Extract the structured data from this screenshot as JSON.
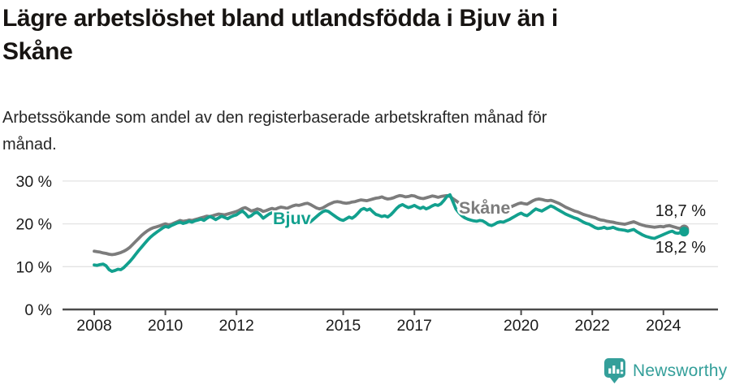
{
  "title": {
    "lines": [
      "Lägre arbetslöshet bland utlandsfödda i Bjuv än i",
      "Skåne"
    ]
  },
  "subtitle": {
    "lines": [
      "Arbetssökande som andel av den registerbaserade arbetskraften månad för",
      "månad."
    ]
  },
  "footer": {
    "brand": "Newsworthy",
    "logo_icon": "bar-chart-speech-bubble-icon"
  },
  "colors": {
    "bjuv_line": "#12a08e",
    "skane_line": "#7c7c7c",
    "grid": "#e3e3e3",
    "axis": "#4b4b4b",
    "text": "#1a1a1a",
    "brand_teal": "#349f9a",
    "title_text": "#171412"
  },
  "chart_data": {
    "type": "line",
    "frequency": "monthly",
    "x_start": "2008-01",
    "x_end": "2024-08",
    "x_tick_years": [
      2008,
      2010,
      2012,
      2015,
      2017,
      2020,
      2022,
      2024
    ],
    "y_ticks": [
      {
        "v": 0,
        "label": "0 %"
      },
      {
        "v": 10,
        "label": "10 %"
      },
      {
        "v": 20,
        "label": "20 %"
      },
      {
        "v": 30,
        "label": "30 %"
      }
    ],
    "ylim": [
      0,
      32
    ],
    "grid": "horizontal",
    "legend": "inline-labels",
    "series": [
      {
        "name": "Skåne",
        "color": "#7c7c7c",
        "end_label": "18,7 %",
        "values": [
          13.6,
          13.5,
          13.4,
          13.2,
          13.1,
          12.9,
          12.8,
          12.9,
          13.1,
          13.3,
          13.6,
          14.0,
          14.5,
          15.2,
          15.9,
          16.6,
          17.3,
          17.9,
          18.4,
          18.8,
          19.1,
          19.3,
          19.5,
          19.8,
          20.0,
          19.8,
          19.9,
          20.2,
          20.5,
          20.8,
          20.6,
          20.7,
          20.9,
          20.8,
          21.0,
          21.2,
          21.4,
          21.6,
          21.8,
          21.7,
          21.9,
          22.1,
          22.3,
          22.2,
          22.1,
          22.3,
          22.5,
          22.7,
          22.9,
          23.2,
          23.6,
          23.8,
          23.4,
          23.0,
          23.2,
          23.5,
          23.3,
          22.9,
          23.1,
          23.4,
          23.6,
          23.4,
          23.7,
          23.9,
          23.8,
          23.6,
          23.9,
          24.2,
          24.4,
          24.3,
          24.5,
          24.7,
          24.8,
          24.5,
          24.1,
          23.7,
          23.5,
          23.7,
          24.1,
          24.5,
          24.8,
          25.1,
          25.2,
          25.1,
          24.9,
          24.8,
          24.9,
          25.1,
          25.2,
          25.4,
          25.6,
          25.5,
          25.4,
          25.6,
          25.8,
          26.0,
          26.1,
          26.3,
          26.0,
          25.8,
          25.9,
          26.1,
          26.4,
          26.6,
          26.5,
          26.3,
          26.4,
          26.6,
          26.5,
          26.2,
          26.0,
          25.9,
          26.1,
          26.3,
          26.5,
          26.4,
          26.2,
          26.4,
          26.5,
          26.6,
          26.4,
          25.9,
          25.4,
          24.9,
          24.5,
          24.2,
          24.0,
          23.8,
          23.6,
          23.4,
          23.3,
          23.2,
          23.1,
          22.9,
          22.7,
          22.8,
          23.0,
          23.2,
          23.4,
          23.6,
          23.8,
          24.1,
          24.4,
          24.7,
          24.9,
          24.7,
          24.6,
          25.0,
          25.4,
          25.7,
          25.8,
          25.7,
          25.5,
          25.4,
          25.5,
          25.3,
          25.0,
          24.7,
          24.3,
          23.9,
          23.6,
          23.3,
          23.0,
          22.8,
          22.5,
          22.2,
          22.0,
          21.8,
          21.6,
          21.4,
          21.1,
          20.9,
          20.8,
          20.6,
          20.5,
          20.4,
          20.2,
          20.1,
          20.0,
          19.9,
          20.1,
          20.3,
          20.5,
          20.2,
          19.9,
          19.7,
          19.5,
          19.4,
          19.3,
          19.2,
          19.3,
          19.4,
          19.3,
          19.5,
          19.6,
          19.4,
          19.2,
          19.0,
          18.9,
          18.7
        ]
      },
      {
        "name": "Bjuv",
        "color": "#12a08e",
        "end_label": "18,2 %",
        "values": [
          10.4,
          10.3,
          10.5,
          10.6,
          10.2,
          9.3,
          8.9,
          9.1,
          9.4,
          9.3,
          9.8,
          10.5,
          11.2,
          12.0,
          12.9,
          13.8,
          14.6,
          15.4,
          16.2,
          16.9,
          17.5,
          18.0,
          18.5,
          19.0,
          19.4,
          19.2,
          19.6,
          19.9,
          20.2,
          20.4,
          20.1,
          20.3,
          20.6,
          20.4,
          20.7,
          20.9,
          21.1,
          20.8,
          21.3,
          21.7,
          21.4,
          21.0,
          21.4,
          21.8,
          21.5,
          21.2,
          21.6,
          21.9,
          22.1,
          22.6,
          23.0,
          22.4,
          21.6,
          21.9,
          22.5,
          22.7,
          22.1,
          21.3,
          21.8,
          22.3,
          22.6,
          22.4,
          22.7,
          22.3,
          21.8,
          21.4,
          21.0,
          20.7,
          20.4,
          20.2,
          20.4,
          20.3,
          20.2,
          20.5,
          21.1,
          21.7,
          22.3,
          22.8,
          23.1,
          22.9,
          22.4,
          21.9,
          21.4,
          21.0,
          20.8,
          21.2,
          21.6,
          21.3,
          21.8,
          22.5,
          23.3,
          23.6,
          23.2,
          23.5,
          22.8,
          22.2,
          22.0,
          21.7,
          21.9,
          21.6,
          22.1,
          22.8,
          23.6,
          24.2,
          24.5,
          24.1,
          23.8,
          24.0,
          24.3,
          23.9,
          23.6,
          23.9,
          23.5,
          23.8,
          24.2,
          24.5,
          24.3,
          24.7,
          25.5,
          26.4,
          26.8,
          25.2,
          23.5,
          22.6,
          21.9,
          21.4,
          21.1,
          20.9,
          20.7,
          20.6,
          20.8,
          20.7,
          20.3,
          19.8,
          19.6,
          19.9,
          20.3,
          20.5,
          20.4,
          20.7,
          21.0,
          21.4,
          21.8,
          22.2,
          22.5,
          22.1,
          21.9,
          22.4,
          23.0,
          23.5,
          23.2,
          23.0,
          23.4,
          23.8,
          24.2,
          23.9,
          23.5,
          23.1,
          22.7,
          22.3,
          22.0,
          21.7,
          21.4,
          21.2,
          20.8,
          20.4,
          20.1,
          19.9,
          19.5,
          19.1,
          18.9,
          19.0,
          19.2,
          18.9,
          19.0,
          19.2,
          18.9,
          18.7,
          18.6,
          18.5,
          18.3,
          18.5,
          18.7,
          18.2,
          17.8,
          17.4,
          17.1,
          16.9,
          16.7,
          16.6,
          16.9,
          17.2,
          17.5,
          17.8,
          18.1,
          18.3,
          17.9,
          17.8,
          18.0,
          18.2
        ]
      }
    ]
  }
}
